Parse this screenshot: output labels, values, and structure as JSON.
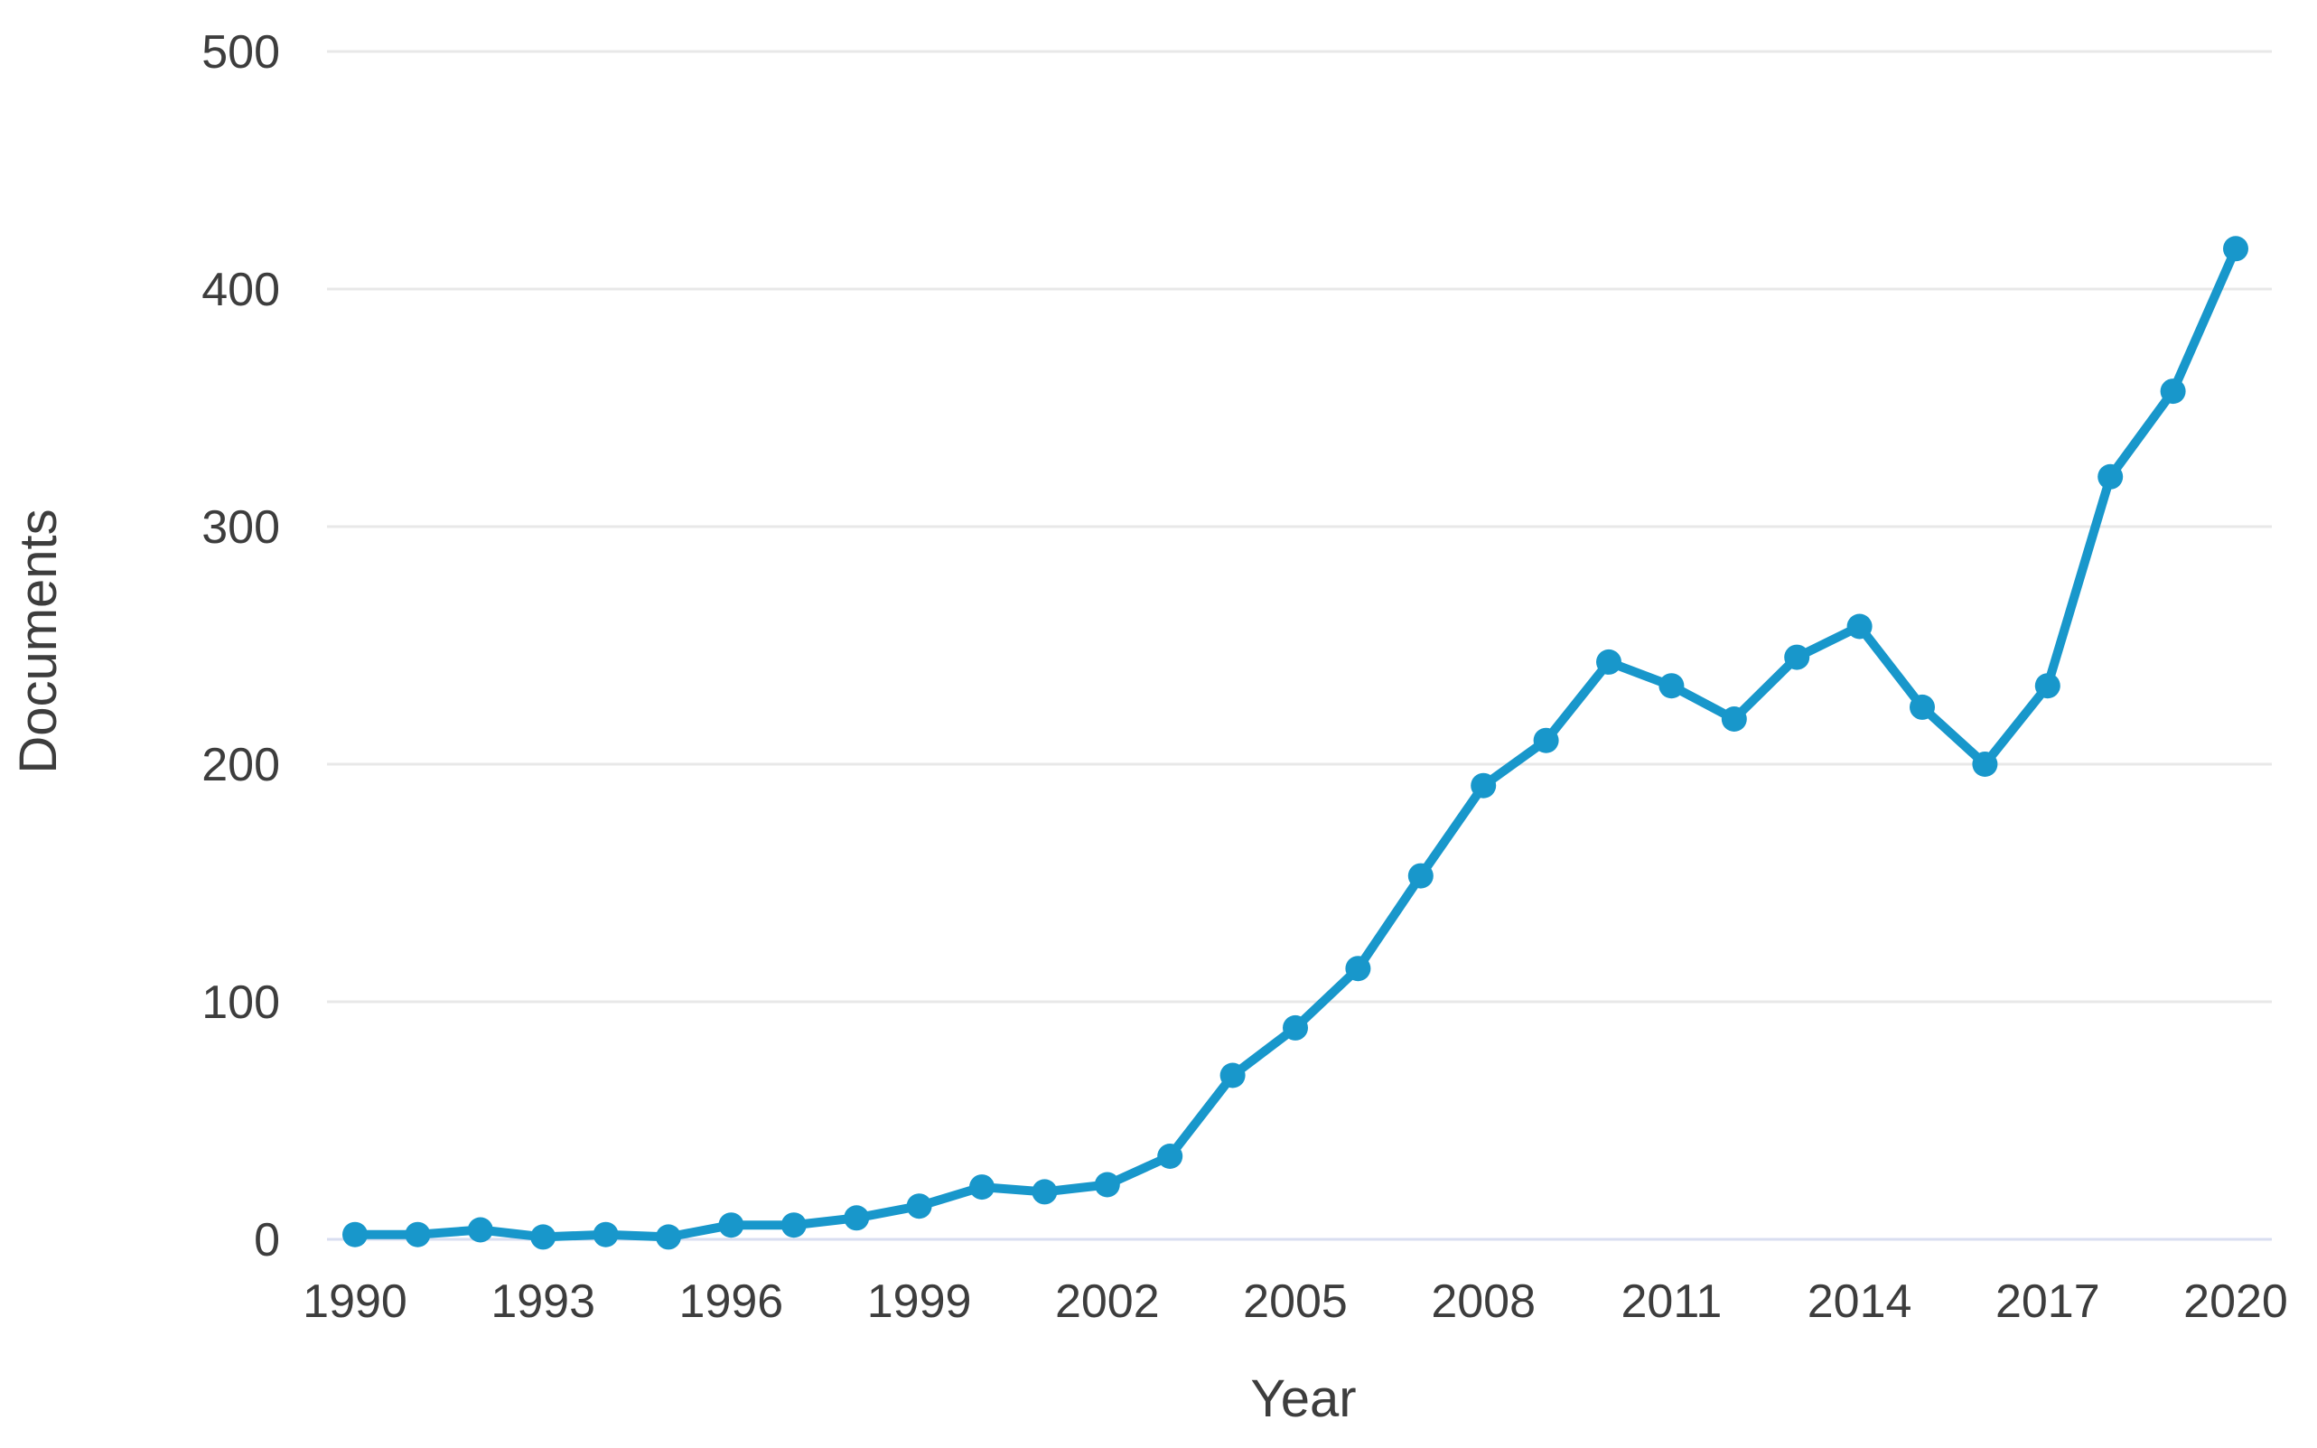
{
  "chart_data": {
    "type": "line",
    "title": "",
    "xlabel": "Year",
    "ylabel": "Documents",
    "x": [
      1990,
      1991,
      1992,
      1993,
      1994,
      1995,
      1996,
      1997,
      1998,
      1999,
      2000,
      2001,
      2002,
      2003,
      2004,
      2005,
      2006,
      2007,
      2008,
      2009,
      2010,
      2011,
      2012,
      2013,
      2014,
      2015,
      2016,
      2017,
      2018,
      2019,
      2020
    ],
    "series": [
      {
        "name": "Documents",
        "values": [
          2,
          2,
          4,
          1,
          2,
          1,
          6,
          6,
          9,
          14,
          22,
          20,
          23,
          35,
          69,
          89,
          114,
          153,
          191,
          210,
          243,
          233,
          219,
          245,
          258,
          224,
          200,
          233,
          321,
          357,
          417
        ]
      }
    ],
    "x_tick_labels": [
      "1990",
      "1993",
      "1996",
      "1999",
      "2002",
      "2005",
      "2008",
      "2011",
      "2014",
      "2017",
      "2020"
    ],
    "y_ticks": [
      0,
      100,
      200,
      300,
      400,
      500
    ],
    "ylim": [
      0,
      500
    ],
    "xlim": [
      1990,
      2020
    ],
    "grid": "horizontal",
    "legend_position": "none"
  },
  "colors": {
    "line": "#1897cb",
    "marker": "#1897cb",
    "gridline": "#e8e8e8",
    "baseline": "#d9def0",
    "text": "#3d3d3d"
  }
}
